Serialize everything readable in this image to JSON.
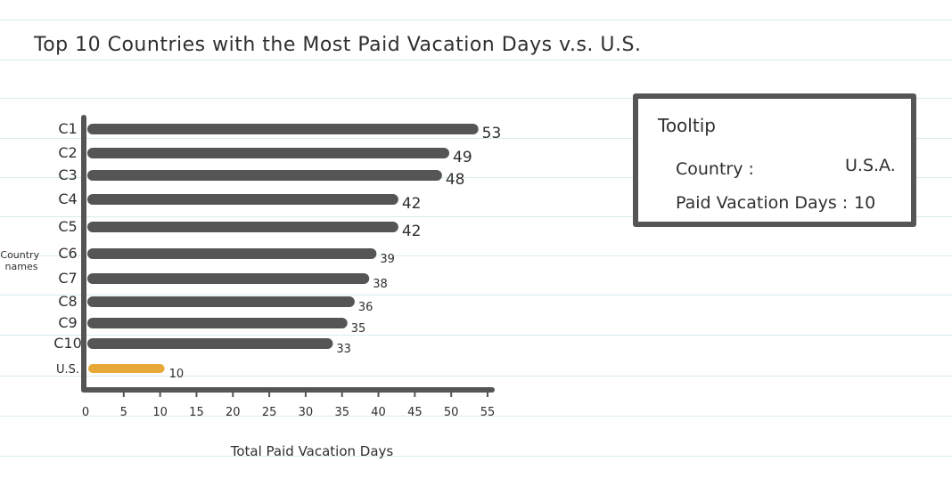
{
  "chart_data": {
    "type": "bar",
    "orientation": "horizontal",
    "title": "Top 10 Countries with the Most Paid Vacation Days   v.s. U.S.",
    "xlabel": "Total Paid Vacation Days",
    "ylabel": "Country names",
    "categories": [
      "C1",
      "C2",
      "C3",
      "C4",
      "C5",
      "C6",
      "C7",
      "C8",
      "C9",
      "C10",
      "U.S."
    ],
    "values": [
      53,
      49,
      48,
      42,
      42,
      39,
      38,
      36,
      35,
      33,
      10
    ],
    "data_labels": [
      "53",
      "49",
      "48",
      "42",
      "42",
      "39",
      "38",
      "36",
      "35",
      "33",
      "10"
    ],
    "highlight_category": "U.S.",
    "xlim": [
      0,
      55
    ],
    "xticks": [
      "0",
      "5",
      "10",
      "15",
      "20",
      "25",
      "30",
      "35",
      "40",
      "45",
      "50",
      "55"
    ],
    "grid": false,
    "colors": {
      "bar": "#555555",
      "highlight": "#e8a838",
      "axis": "#555555",
      "text": "#2f2f2f"
    }
  },
  "tooltip": {
    "title": "Tooltip",
    "country_label": "Country :",
    "country_value": "U.S.A.",
    "days_label": "Paid Vacation Days :",
    "days_value": "10"
  }
}
